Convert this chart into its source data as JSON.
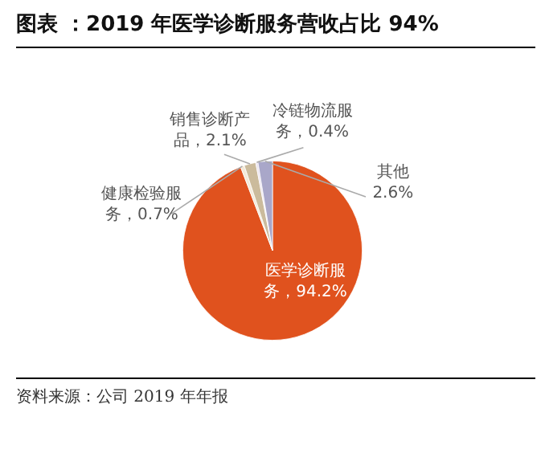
{
  "chart_data": {
    "type": "pie",
    "title": "图表 ：2019 年医学诊断服务营收占比 94%",
    "categories": [
      "医学诊断服务",
      "健康检验服务",
      "销售诊断产品",
      "冷链物流服务",
      "其他"
    ],
    "values": [
      94.2,
      0.7,
      2.1,
      0.4,
      2.6
    ],
    "colors": [
      "#e0521e",
      "#f3ead9",
      "#cbbb9c",
      "#ece4ef",
      "#a9a7c9"
    ],
    "value_labels": [
      "，94.2%",
      "，0.7%",
      "，2.1%",
      "，0.4%",
      "2.6%"
    ],
    "legend": false,
    "annotations": [
      "资料来源：公司 2019 年年报"
    ]
  }
}
